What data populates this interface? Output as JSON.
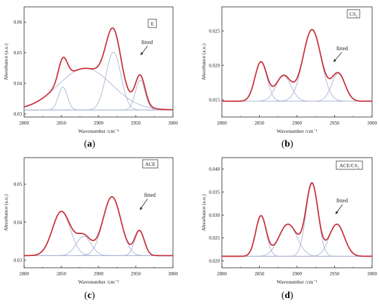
{
  "colors": {
    "fitted_line": "#c8323c",
    "component_line": "#a9b4d6",
    "baseline": "#b9c2e0",
    "axis": "#222222"
  },
  "chart_data": [
    {
      "id": "a",
      "caption": "(a)",
      "type": "line",
      "legend_label": "E",
      "annotation": "fitted",
      "xlabel": "Wavenumber /cm⁻¹",
      "ylabel": "Absorbance (a.u.)",
      "xlim": [
        2800,
        3000
      ],
      "ylim": [
        0.029,
        0.065
      ],
      "xticks": [
        2800,
        2850,
        2900,
        2950,
        3000
      ],
      "yticks": [
        0.03,
        0.04,
        0.05,
        0.06
      ],
      "ytick_labels": [
        "0.03",
        "0.04",
        "0.05",
        "0.06"
      ],
      "baseline": 0.0313,
      "peaks": [
        {
          "center": 2852,
          "height": 0.0075,
          "width": 6
        },
        {
          "center": 2882,
          "height": 0.0136,
          "width": 36
        },
        {
          "center": 2920,
          "height": 0.0189,
          "width": 10
        },
        {
          "center": 2956,
          "height": 0.0098,
          "width": 6.5
        }
      ]
    },
    {
      "id": "b",
      "caption": "(b)",
      "type": "line",
      "legend_label": "CS₂",
      "annotation": "fitted",
      "xlabel": "Wavenumber /cm⁻¹",
      "ylabel": "Absorbance (a.u.)",
      "xlim": [
        2800,
        3000
      ],
      "ylim": [
        0.0125,
        0.0285
      ],
      "xticks": [
        2800,
        2850,
        2900,
        2950,
        3000
      ],
      "yticks": [
        0.015,
        0.02,
        0.025
      ],
      "ytick_labels": [
        "0.015",
        "0.020",
        "0.025"
      ],
      "baseline": 0.0148,
      "peaks": [
        {
          "center": 2852,
          "height": 0.0057,
          "width": 8
        },
        {
          "center": 2882,
          "height": 0.0037,
          "width": 10
        },
        {
          "center": 2920,
          "height": 0.0104,
          "width": 12
        },
        {
          "center": 2955,
          "height": 0.004,
          "width": 9
        }
      ]
    },
    {
      "id": "c",
      "caption": "(c)",
      "type": "line",
      "legend_label": "ACE",
      "annotation": "fitted",
      "xlabel": "Wavenumber /cm⁻¹",
      "ylabel": "Absorbance (a.u.)",
      "xlim": [
        2800,
        3000
      ],
      "ylim": [
        0.028,
        0.057
      ],
      "xticks": [
        2800,
        2850,
        2900,
        2950,
        3000
      ],
      "yticks": [
        0.03,
        0.04,
        0.05
      ],
      "ytick_labels": [
        "0.03",
        "0.04",
        "0.05"
      ],
      "baseline": 0.0312,
      "peaks": [
        {
          "center": 2850,
          "height": 0.0116,
          "width": 12
        },
        {
          "center": 2880,
          "height": 0.0051,
          "width": 10
        },
        {
          "center": 2918,
          "height": 0.0155,
          "width": 12
        },
        {
          "center": 2955,
          "height": 0.0065,
          "width": 6.5
        }
      ]
    },
    {
      "id": "d",
      "caption": "(d)",
      "type": "line",
      "legend_label": "ACE/CS₂",
      "annotation": "fitted",
      "xlabel": "Wavenumber /cm⁻¹",
      "ylabel": "Absorbance (a.u.)",
      "xlim": [
        2800,
        3000
      ],
      "ylim": [
        0.0185,
        0.0425
      ],
      "xticks": [
        2800,
        2850,
        2900,
        2950,
        3000
      ],
      "yticks": [
        0.02,
        0.025,
        0.03,
        0.035,
        0.04
      ],
      "ytick_labels": [
        "0.020",
        "0.025",
        "0.030",
        "0.035",
        "0.040"
      ],
      "baseline": 0.021,
      "peaks": [
        {
          "center": 2852,
          "height": 0.0088,
          "width": 7
        },
        {
          "center": 2888,
          "height": 0.007,
          "width": 12
        },
        {
          "center": 2920,
          "height": 0.0158,
          "width": 8
        },
        {
          "center": 2953,
          "height": 0.007,
          "width": 10
        }
      ]
    }
  ]
}
